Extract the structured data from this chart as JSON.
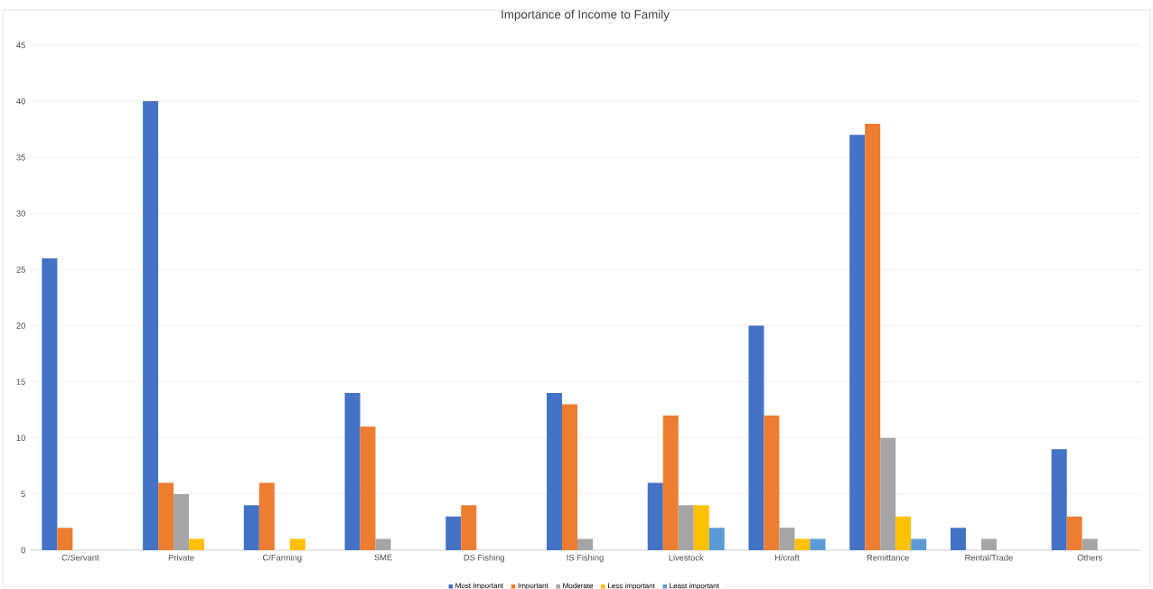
{
  "chart_data": {
    "type": "bar",
    "title": "Importance of Income to Family",
    "categories": [
      "C/Servant",
      "Private",
      "C/Farming",
      "SME",
      "DS Fishing",
      "IS Fishing",
      "Livestock",
      "H/craft",
      "Remittance",
      "Rental/Trade",
      "Others"
    ],
    "series": [
      {
        "name": "Most Important",
        "color": "#4472c4",
        "values": [
          26,
          40,
          4,
          14,
          3,
          14,
          6,
          20,
          37,
          2,
          9
        ]
      },
      {
        "name": "Important",
        "color": "#ed7d31",
        "values": [
          2,
          6,
          6,
          11,
          4,
          13,
          12,
          12,
          38,
          null,
          3
        ]
      },
      {
        "name": "Moderate",
        "color": "#a5a5a5",
        "values": [
          null,
          5,
          null,
          1,
          null,
          1,
          4,
          2,
          10,
          1,
          1
        ]
      },
      {
        "name": "Less important",
        "color": "#ffc000",
        "values": [
          null,
          1,
          1,
          null,
          null,
          null,
          4,
          1,
          3,
          null,
          null
        ]
      },
      {
        "name": "Least important",
        "color": "#5b9bd5",
        "values": [
          null,
          null,
          null,
          null,
          null,
          null,
          2,
          1,
          1,
          null,
          null
        ]
      }
    ],
    "ylim": [
      0,
      45
    ],
    "yticks": [
      0,
      5,
      10,
      15,
      20,
      25,
      30,
      35,
      40,
      45
    ],
    "grid": "y",
    "legend": "bottom"
  }
}
